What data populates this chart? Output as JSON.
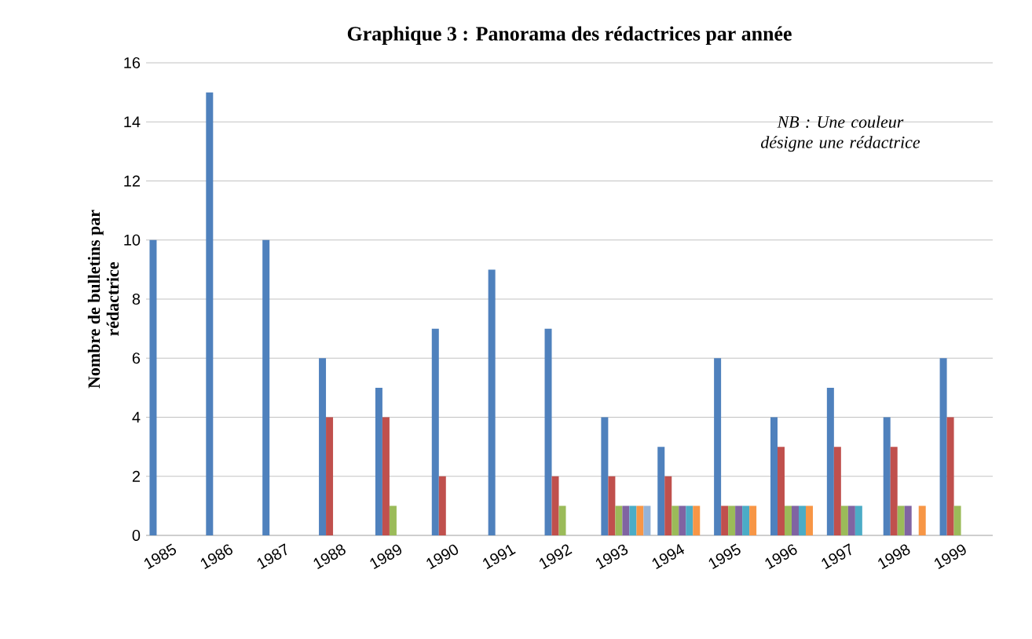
{
  "chart_data": {
    "type": "bar",
    "title": "Graphique 3 : Panorama des rédactrices par année",
    "ylabel": "Nombre de bulletins par rédactrice",
    "annotations": [
      "NB : Une couleur désigne une rédactrice"
    ],
    "categories": [
      "1985",
      "1986",
      "1987",
      "1988",
      "1989",
      "1990",
      "1991",
      "1992",
      "1993",
      "1994",
      "1995",
      "1996",
      "1997",
      "1998",
      "1999"
    ],
    "series": [
      {
        "color": "#4f81bd",
        "values": [
          10,
          15,
          10,
          6,
          5,
          7,
          9,
          7,
          4,
          3,
          6,
          4,
          5,
          4,
          6
        ]
      },
      {
        "color": "#c0504d",
        "values": [
          null,
          null,
          null,
          4,
          4,
          2,
          null,
          2,
          2,
          2,
          1,
          3,
          3,
          3,
          4
        ]
      },
      {
        "color": "#9bbb59",
        "values": [
          null,
          null,
          null,
          null,
          1,
          null,
          null,
          1,
          1,
          1,
          1,
          1,
          1,
          1,
          1
        ]
      },
      {
        "color": "#8064a2",
        "values": [
          null,
          null,
          null,
          null,
          null,
          null,
          null,
          null,
          1,
          1,
          1,
          1,
          1,
          1,
          null
        ]
      },
      {
        "color": "#4bacc6",
        "values": [
          null,
          null,
          null,
          null,
          null,
          null,
          null,
          null,
          1,
          1,
          1,
          1,
          1,
          null,
          null
        ]
      },
      {
        "color": "#f79646",
        "values": [
          null,
          null,
          null,
          null,
          null,
          null,
          null,
          null,
          1,
          1,
          1,
          1,
          null,
          1,
          null
        ]
      },
      {
        "color": "#95b3d7",
        "values": [
          null,
          null,
          null,
          null,
          null,
          null,
          null,
          null,
          1,
          null,
          null,
          null,
          null,
          null,
          null
        ]
      }
    ],
    "ylim": [
      0,
      16
    ],
    "yticks": [
      0,
      2,
      4,
      6,
      8,
      10,
      12,
      14,
      16
    ],
    "grid": "y"
  }
}
